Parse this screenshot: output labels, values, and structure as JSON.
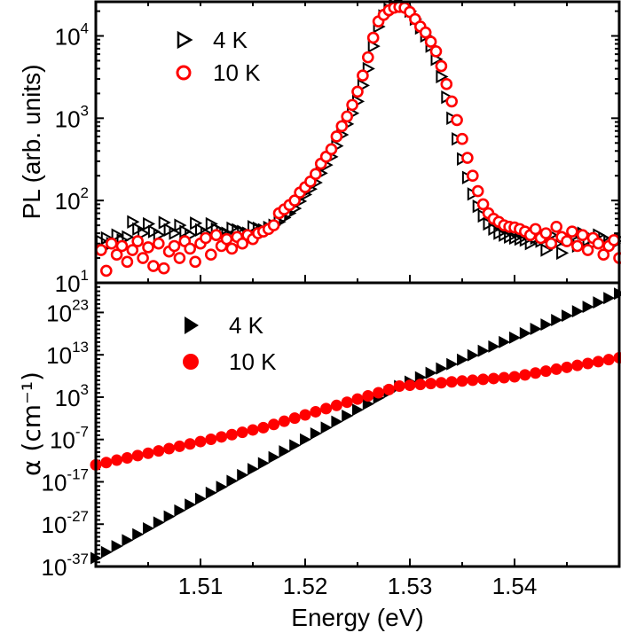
{
  "chart_data": [
    {
      "type": "scatter",
      "panel": "top",
      "ylabel": "PL (arb. units)",
      "xlabel": "Energy (eV)",
      "xlim": [
        1.5,
        1.55
      ],
      "ylim": [
        10,
        26000
      ],
      "yscale": "log",
      "legend_placement": "top-left",
      "x_ticks": [
        {
          "value": 1.51,
          "label": "1.51"
        },
        {
          "value": 1.52,
          "label": "1.52"
        },
        {
          "value": 1.53,
          "label": "1.53"
        },
        {
          "value": 1.54,
          "label": "1.54"
        }
      ],
      "y_ticks": [
        {
          "value": 10,
          "base": "10",
          "exp": "1"
        },
        {
          "value": 100,
          "base": "10",
          "exp": "2"
        },
        {
          "value": 1000,
          "base": "10",
          "exp": "3"
        },
        {
          "value": 10000,
          "base": "10",
          "exp": "4"
        }
      ],
      "x": [
        1.5005,
        1.501,
        1.5015,
        1.502,
        1.5025,
        1.503,
        1.5035,
        1.504,
        1.5045,
        1.505,
        1.5055,
        1.506,
        1.5065,
        1.507,
        1.5075,
        1.508,
        1.5085,
        1.509,
        1.5095,
        1.51,
        1.5105,
        1.511,
        1.5115,
        1.512,
        1.5125,
        1.513,
        1.5135,
        1.514,
        1.5145,
        1.515,
        1.5155,
        1.516,
        1.5165,
        1.517,
        1.5175,
        1.518,
        1.5185,
        1.519,
        1.5195,
        1.52,
        1.5205,
        1.521,
        1.5215,
        1.522,
        1.5225,
        1.523,
        1.5235,
        1.524,
        1.5245,
        1.525,
        1.5255,
        1.526,
        1.5265,
        1.527,
        1.5275,
        1.528,
        1.5285,
        1.529,
        1.5295,
        1.53,
        1.5305,
        1.531,
        1.5315,
        1.532,
        1.5325,
        1.533,
        1.5335,
        1.534,
        1.5345,
        1.535,
        1.5355,
        1.536,
        1.5365,
        1.537,
        1.5375,
        1.538,
        1.5385,
        1.539,
        1.5395,
        1.54,
        1.5405,
        1.541,
        1.5415,
        1.542,
        1.5425,
        1.543,
        1.5435,
        1.544,
        1.5445,
        1.545,
        1.5455,
        1.546,
        1.5465,
        1.547,
        1.5475,
        1.548,
        1.5485,
        1.549,
        1.5495,
        1.55
      ],
      "series": [
        {
          "name": "4 K",
          "marker": "open-triangle-right",
          "color": "#000000",
          "values": [
            32,
            35,
            30,
            38,
            33,
            36,
            55,
            45,
            40,
            52,
            42,
            38,
            54,
            44,
            40,
            50,
            42,
            38,
            53,
            44,
            40,
            52,
            45,
            42,
            40,
            46,
            44,
            42,
            40,
            48,
            46,
            44,
            47,
            50,
            55,
            62,
            70,
            80,
            98,
            118,
            138,
            165,
            215,
            270,
            340,
            460,
            630,
            850,
            1150,
            1600,
            2500,
            4000,
            7500,
            13000,
            17500,
            21000,
            23500,
            24500,
            23500,
            20000,
            16000,
            12500,
            10000,
            7500,
            5200,
            3200,
            1800,
            1000,
            560,
            320,
            190,
            120,
            85,
            65,
            52,
            45,
            40,
            38,
            36,
            35,
            34,
            33,
            30,
            35,
            32,
            25,
            38,
            30,
            23,
            34,
            36,
            28,
            40,
            33,
            30,
            38,
            35,
            32,
            30,
            34
          ]
        },
        {
          "name": "10 K",
          "marker": "open-circle",
          "color": "#ff0000",
          "values": [
            25,
            14,
            30,
            22,
            28,
            18,
            25,
            32,
            20,
            27,
            16,
            30,
            15,
            24,
            28,
            20,
            32,
            26,
            18,
            30,
            35,
            22,
            38,
            28,
            34,
            26,
            36,
            30,
            38,
            34,
            40,
            42,
            45,
            50,
            70,
            78,
            88,
            100,
            125,
            145,
            170,
            210,
            280,
            340,
            420,
            600,
            800,
            1050,
            1450,
            2100,
            3300,
            5500,
            9500,
            15000,
            18000,
            20500,
            22000,
            22500,
            22000,
            19500,
            16000,
            13000,
            11000,
            8500,
            6500,
            4300,
            2600,
            1600,
            950,
            560,
            330,
            200,
            130,
            90,
            70,
            60,
            55,
            50,
            48,
            47,
            45,
            42,
            38,
            45,
            35,
            40,
            30,
            48,
            36,
            32,
            42,
            28,
            38,
            25,
            35,
            30,
            22,
            28,
            33,
            20
          ]
        }
      ]
    },
    {
      "type": "scatter",
      "panel": "bottom",
      "ylabel": "α (cm⁻¹)",
      "ylabel_main": "α (cm",
      "ylabel_sup": "-1",
      "ylabel_close": ")",
      "xlabel": "Energy (eV)",
      "xlim": [
        1.5,
        1.55
      ],
      "ylim": [
        1e-37,
        1e+30
      ],
      "yscale": "log",
      "legend_placement": "top-left",
      "y_ticks": [
        {
          "value": 1e-37,
          "base": "10",
          "exp": "-37"
        },
        {
          "value": 1e-27,
          "base": "10",
          "exp": "-27"
        },
        {
          "value": 1e-17,
          "base": "10",
          "exp": "-17"
        },
        {
          "value": 1e-07,
          "base": "10",
          "exp": "-7"
        },
        {
          "value": 1000.0,
          "base": "10",
          "exp": "3"
        },
        {
          "value": 10000000000000.0,
          "base": "10",
          "exp": "13"
        },
        {
          "value": 1e+23,
          "base": "10",
          "exp": "23"
        }
      ],
      "x": [
        1.5,
        1.501,
        1.502,
        1.503,
        1.504,
        1.505,
        1.506,
        1.507,
        1.508,
        1.509,
        1.51,
        1.511,
        1.512,
        1.513,
        1.514,
        1.515,
        1.516,
        1.517,
        1.518,
        1.519,
        1.52,
        1.521,
        1.522,
        1.523,
        1.524,
        1.525,
        1.526,
        1.527,
        1.528,
        1.529,
        1.53,
        1.531,
        1.532,
        1.533,
        1.534,
        1.535,
        1.536,
        1.537,
        1.538,
        1.539,
        1.54,
        1.541,
        1.542,
        1.543,
        1.544,
        1.545,
        1.546,
        1.547,
        1.548,
        1.549,
        1.55
      ],
      "series": [
        {
          "name": "4 K",
          "marker": "filled-triangle-right",
          "color": "#000000",
          "values": [
            1e-35,
            2.5e-34,
            6.3e-33,
            1.6e-31,
            4e-30,
            1e-28,
            2.5e-27,
            6.3e-26,
            1.6e-24,
            4e-23,
            1e-21,
            2.5e-20,
            6.3e-19,
            1.6e-17,
            4e-16,
            1e-14,
            2.5e-13,
            6.3e-12,
            1.6e-10,
            4e-09,
            1e-07,
            2.5e-06,
            6.3e-05,
            0.0016,
            0.04,
            1,
            25,
            630,
            16000.0,
            400000.0,
            4400000.0,
            48000000.0,
            520000000.0,
            5800000000.0,
            63000000000.0,
            690000000000.0,
            7600000000000.0,
            83000000000000.0,
            910000000000000.0,
            1e+16,
            1.1e+17,
            1.2e+18,
            1.3e+19,
            1.4e+20,
            1.6e+21,
            1.7e+22,
            1.9e+23,
            2.1e+24,
            2.3e+25,
            2.5e+26,
            2.8e+27
          ]
        },
        {
          "name": "10 K",
          "marker": "filled-circle",
          "color": "#ff0000",
          "values": [
            1e-13,
            3.5e-13,
            1.3e-12,
            4.5e-12,
            1.6e-11,
            5.6e-11,
            2e-10,
            7.1e-10,
            2.5e-09,
            8.9e-09,
            3.2e-08,
            1.1e-07,
            4e-07,
            1.4e-06,
            5e-06,
            1.8e-05,
            6.3e-05,
            0.00035,
            0.002,
            0.011,
            0.063,
            0.35,
            2,
            11,
            63,
            355,
            2000,
            11000.0,
            63000.0,
            400000.0,
            630000.0,
            1000000.0,
            1600000.0,
            2500000.0,
            4000000.0,
            6300000.0,
            10000000.0,
            16000000.0,
            25000000.0,
            40000000.0,
            63000000.0,
            180000000.0,
            500000000.0,
            1400000000.0,
            4000000000.0,
            11000000000.0,
            32000000000.0,
            89000000000.0,
            250000000000.0,
            710000000000.0,
            2000000000000.0
          ]
        }
      ]
    }
  ]
}
